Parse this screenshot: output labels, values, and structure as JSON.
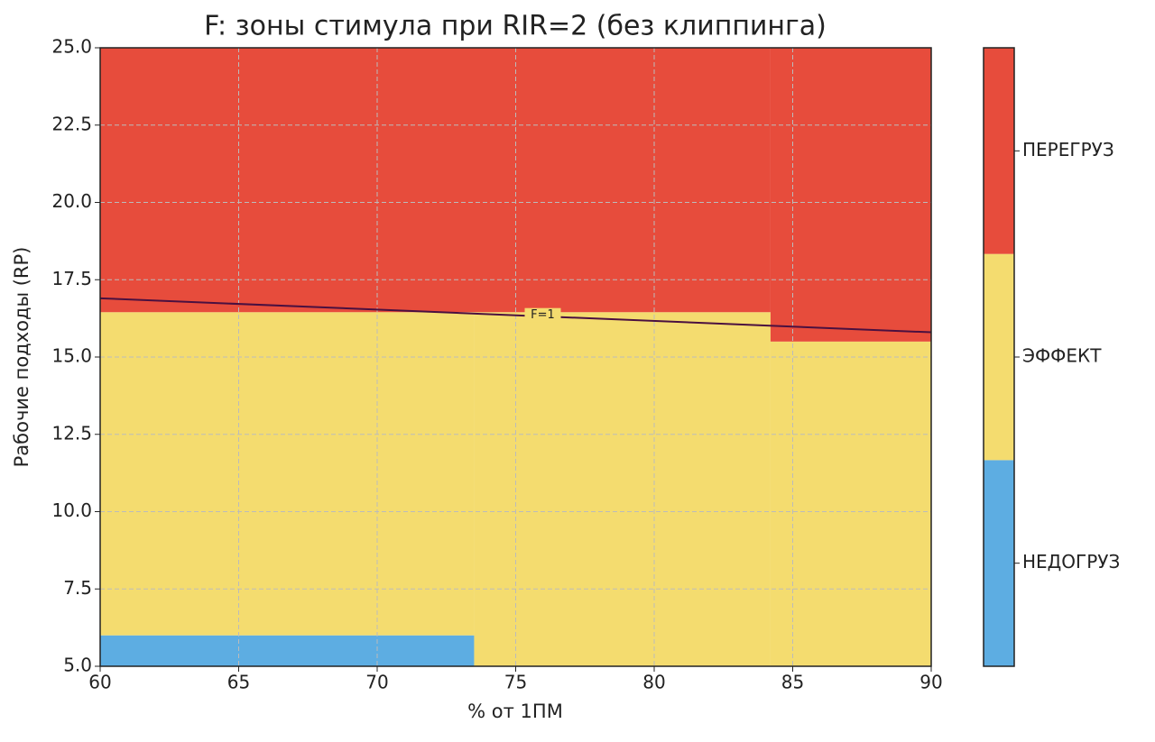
{
  "chart_data": {
    "type": "zones",
    "title": "F: зоны стимула при RIR=2 (без клиппинга)",
    "x_label": "% от 1ПМ",
    "y_label": "Рабочие подходы (RP)",
    "xlim": [
      60,
      90
    ],
    "ylim": [
      5,
      25
    ],
    "xticks": [
      60,
      65,
      70,
      75,
      80,
      85,
      90
    ],
    "yticks": [
      {
        "value": 5,
        "label": "5.0"
      },
      7.5,
      {
        "value": 10,
        "label": "10.0"
      },
      12.5,
      {
        "value": 15,
        "label": "15.0"
      },
      17.5,
      {
        "value": 20,
        "label": "20.0"
      },
      22.5,
      {
        "value": 25,
        "label": "25.0"
      }
    ],
    "grid": true,
    "zones": [
      {
        "name": "НЕДОГРУЗ",
        "color": "#5dade2",
        "areas": [
          {
            "x": [
              60,
              73.5
            ],
            "y": [
              5,
              6
            ]
          }
        ]
      },
      {
        "name": "ЭФФЕКТ",
        "color": "#f4dc6f",
        "areas": [
          {
            "x": [
              73.5,
              84.2
            ],
            "y": [
              5,
              16.45
            ]
          },
          {
            "x": [
              60,
              73.5
            ],
            "y": [
              6,
              16.45
            ]
          },
          {
            "x": [
              84.2,
              90
            ],
            "y": [
              5,
              15.5
            ]
          }
        ]
      },
      {
        "name": "ПЕРЕГРУЗ",
        "color": "#e74c3c",
        "areas": [
          {
            "x": [
              60,
              84.2
            ],
            "y": [
              16.45,
              25
            ]
          },
          {
            "x": [
              84.2,
              90
            ],
            "y": [
              15.5,
              25
            ]
          }
        ]
      }
    ],
    "contour": {
      "label": "F=1",
      "color": "#4a1040",
      "x": [
        60,
        90
      ],
      "y": [
        16.9,
        15.8
      ]
    }
  }
}
